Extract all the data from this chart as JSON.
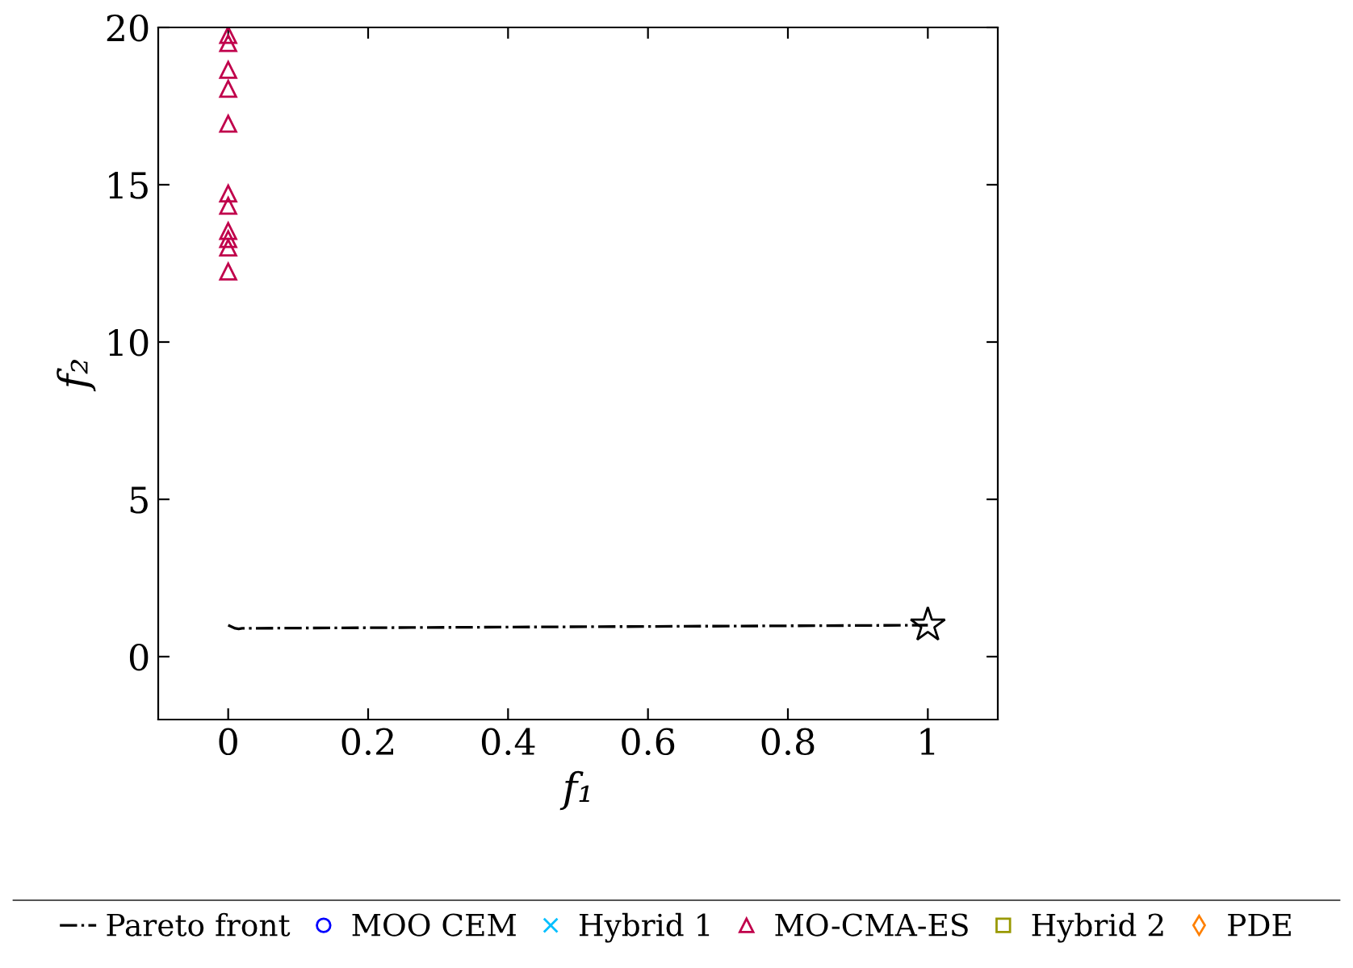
{
  "chart_data": {
    "type": "scatter",
    "xlabel": "f₁",
    "ylabel": "f₂",
    "xlim": [
      -0.1,
      1.1
    ],
    "xticks": [
      0,
      0.2,
      0.4,
      0.6,
      0.8,
      1
    ],
    "ylim": [
      -2,
      20
    ],
    "yticks": [
      0,
      5,
      10,
      15,
      20
    ],
    "grid": false,
    "legend": "bottom",
    "series": [
      {
        "name": "Pareto front",
        "type": "line",
        "color": "#000000",
        "line_style": "dashdot",
        "marker": "none",
        "x": [
          0,
          0.005,
          0.01,
          0.015,
          0.02,
          1
        ],
        "values": [
          1.0,
          0.95,
          0.9,
          0.88,
          0.9,
          1.0
        ]
      },
      {
        "name": "MOO CEM",
        "color": "#0000ff",
        "marker": "circle"
      },
      {
        "name": "Hybrid 1",
        "color": "#00bfff",
        "marker": "cross"
      },
      {
        "name": "MO-CMA-ES",
        "color": "#c0004b",
        "marker": "triangle",
        "x": [
          0,
          0,
          0,
          0,
          0,
          0,
          0,
          0,
          0,
          0,
          0
        ],
        "values": [
          19.76,
          19.5,
          18.65,
          18.05,
          16.94,
          14.72,
          14.33,
          13.53,
          13.27,
          13.0,
          12.24
        ]
      },
      {
        "name": "Hybrid 2",
        "color": "#999900",
        "marker": "square"
      },
      {
        "name": "PDE",
        "color": "#ff8000",
        "marker": "diamond"
      },
      {
        "color": "#000000",
        "marker": "star",
        "x": [
          1
        ],
        "values": [
          1.0
        ]
      }
    ]
  }
}
